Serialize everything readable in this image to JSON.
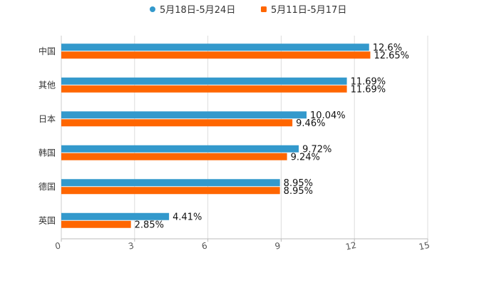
{
  "chart_data": {
    "type": "bar",
    "orientation": "horizontal",
    "categories": [
      "中国",
      "其他",
      "日本",
      "韩国",
      "德国",
      "英国"
    ],
    "series": [
      {
        "name": "5月18日-5月24日",
        "color": "#3399cc",
        "values": [
          12.6,
          11.69,
          10.04,
          9.72,
          8.95,
          4.41
        ],
        "labels": [
          "12.6%",
          "11.69%",
          "10.04%",
          "9.72%",
          "8.95%",
          "4.41%"
        ]
      },
      {
        "name": "5月11日-5月17日",
        "color": "#ff6600",
        "values": [
          12.65,
          11.69,
          9.46,
          9.24,
          8.95,
          2.85
        ],
        "labels": [
          "12.65%",
          "11.69%",
          "9.46%",
          "9.24%",
          "8.95%",
          "2.85%"
        ]
      }
    ],
    "xlim": [
      0,
      15
    ],
    "xticks": [
      0,
      3,
      6,
      9,
      12,
      15
    ],
    "xtick_labels": [
      "0",
      "3",
      "6",
      "9",
      "12",
      "15"
    ],
    "grid": true,
    "legend_position": "top-center",
    "title": "",
    "xlabel": "",
    "ylabel": ""
  }
}
